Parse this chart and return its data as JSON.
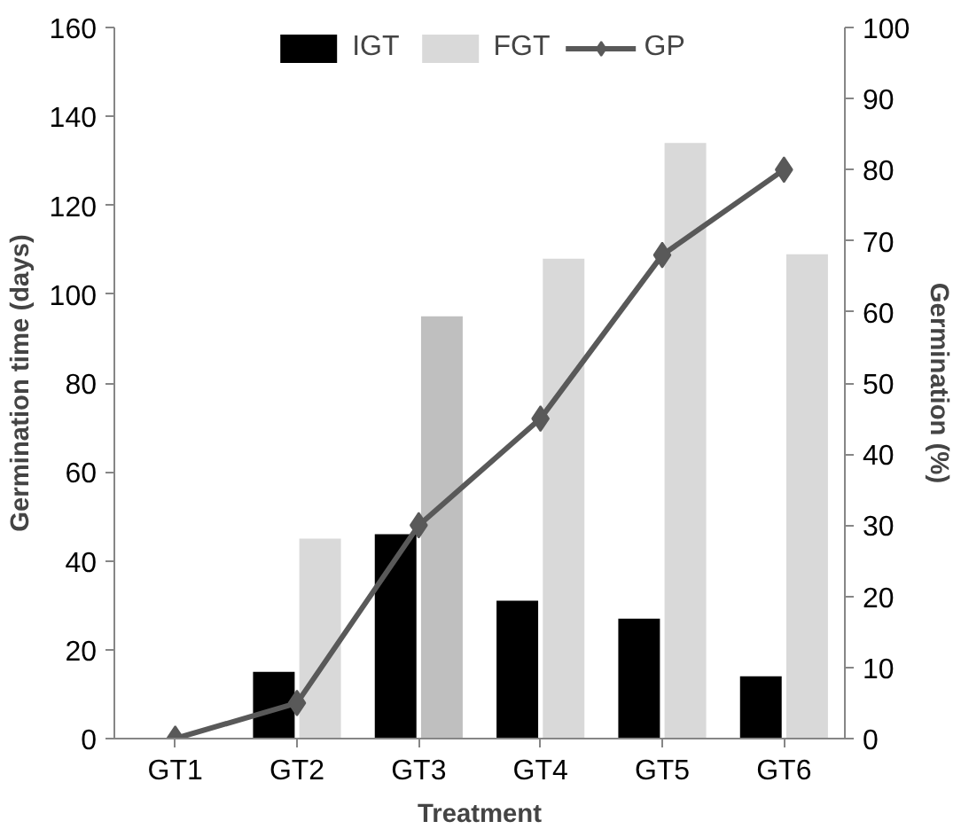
{
  "chart_data": {
    "type": "bar",
    "xlabel": "Treatment",
    "ylabel": "Germination time (days)",
    "y2label": "Germination (%)",
    "categories": [
      "GT1",
      "GT2",
      "GT3",
      "GT4",
      "GT5",
      "GT6"
    ],
    "series": [
      {
        "name": "IGT",
        "color": "#000000",
        "values": [
          0,
          15,
          46,
          31,
          27,
          14
        ]
      },
      {
        "name": "FGT",
        "color": "#d9d9d9",
        "colors": [
          null,
          null,
          "#bfbfbf",
          null,
          null,
          null
        ],
        "values": [
          0,
          45,
          95,
          108,
          134,
          109
        ]
      },
      {
        "name": "GP",
        "type": "line",
        "axis": "y2",
        "color": "#595959",
        "marker": "diamond",
        "line_style": "solid",
        "values": [
          0,
          5,
          30,
          45,
          68,
          80
        ]
      }
    ],
    "ylim": [
      0,
      160
    ],
    "yticks": [
      0,
      20,
      40,
      60,
      80,
      100,
      120,
      140,
      160
    ],
    "y2lim": [
      0,
      100
    ],
    "y2ticks": [
      0,
      10,
      20,
      30,
      40,
      50,
      60,
      70,
      80,
      90,
      100
    ],
    "grid": false,
    "legend": "top"
  }
}
